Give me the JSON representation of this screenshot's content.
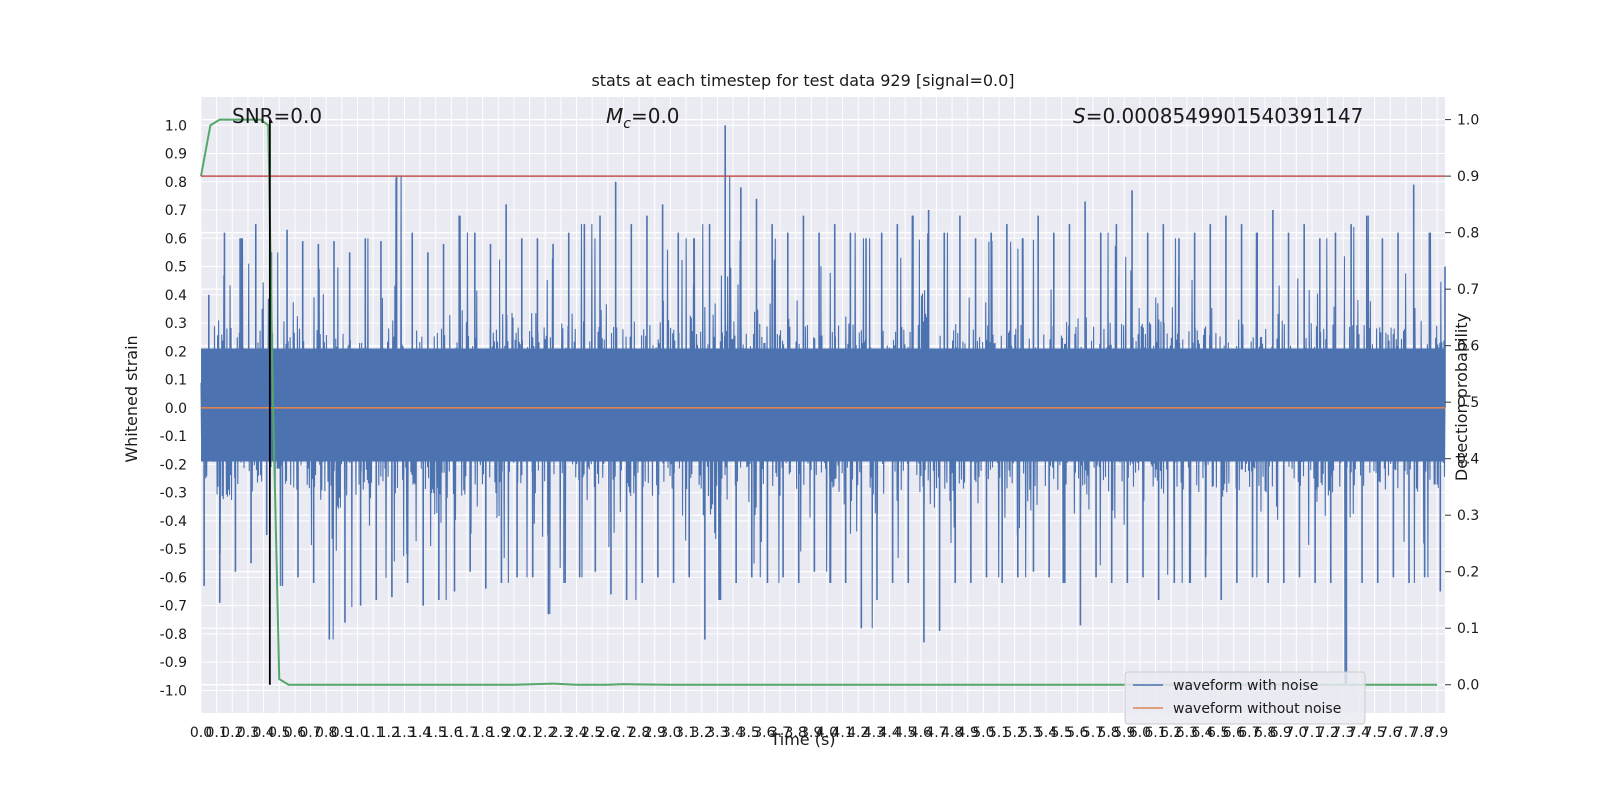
{
  "chart_data": {
    "type": "line",
    "title": "stats at each timestep for test data 929 [signal=0.0]",
    "xlabel": "Time (s)",
    "ylabel": "Whitened strain",
    "y2label": "Detection probability",
    "xlim": [
      0.0,
      7.95
    ],
    "ylim": [
      -1.08,
      1.1
    ],
    "y2lim": [
      -0.05,
      1.04
    ],
    "x_ticks": [
      "0.0",
      "0.1",
      "0.2",
      "0.3",
      "0.4",
      "0.5",
      "0.6",
      "0.7",
      "0.8",
      "0.9",
      "1.0",
      "1.1",
      "1.2",
      "1.3",
      "1.4",
      "1.5",
      "1.6",
      "1.7",
      "1.8",
      "1.9",
      "2.0",
      "2.1",
      "2.2",
      "2.3",
      "2.4",
      "2.5",
      "2.6",
      "2.7",
      "2.8",
      "2.9",
      "3.0",
      "3.1",
      "3.2",
      "3.3",
      "3.4",
      "3.5",
      "3.6",
      "3.7",
      "3.8",
      "3.9",
      "4.0",
      "4.1",
      "4.2",
      "4.3",
      "4.4",
      "4.5",
      "4.6",
      "4.7",
      "4.8",
      "4.9",
      "5.0",
      "5.1",
      "5.2",
      "5.3",
      "5.4",
      "5.5",
      "5.6",
      "5.7",
      "5.8",
      "5.9",
      "6.0",
      "6.1",
      "6.2",
      "6.3",
      "6.4",
      "6.5",
      "6.6",
      "6.7",
      "6.8",
      "6.9",
      "7.0",
      "7.1",
      "7.2",
      "7.3",
      "7.4",
      "7.5",
      "7.6",
      "7.7",
      "7.8",
      "7.9"
    ],
    "y_ticks": [
      "1.0",
      "0.9",
      "0.8",
      "0.7",
      "0.6",
      "0.5",
      "0.4",
      "0.3",
      "0.2",
      "0.1",
      "0.0",
      "-0.1",
      "-0.2",
      "-0.3",
      "-0.4",
      "-0.5",
      "-0.6",
      "-0.7",
      "-0.8",
      "-0.9",
      "-1.0"
    ],
    "y2_ticks": [
      "1.0",
      "0.9",
      "0.8",
      "0.7",
      "0.6",
      "0.5",
      "0.4",
      "0.3",
      "0.2",
      "0.1",
      "0.0"
    ],
    "annotations": {
      "snr": "SNR=0.0",
      "mc_symbol": "M",
      "mc_sub": "c",
      "mc_value": "=0.0",
      "s_symbol": "S",
      "s_value": "=0.0008549901540391147"
    },
    "threshold": 0.9,
    "marker_time": 0.44,
    "series": [
      {
        "name": "waveform with noise",
        "axis": "left",
        "color": "#4c72b0",
        "envelope_peaks": [
          [
            0.0,
            0.4,
            -0.63
          ],
          [
            0.1,
            0.62,
            -0.69
          ],
          [
            0.2,
            0.6,
            -0.58
          ],
          [
            0.3,
            0.65,
            -0.55
          ],
          [
            0.4,
            0.55,
            -0.45
          ],
          [
            0.5,
            0.63,
            -0.63
          ],
          [
            0.6,
            0.59,
            -0.6
          ],
          [
            0.7,
            0.58,
            -0.62
          ],
          [
            0.8,
            0.59,
            -0.82
          ],
          [
            0.9,
            0.55,
            -0.76
          ],
          [
            1.0,
            0.6,
            -0.7
          ],
          [
            1.1,
            0.59,
            -0.68
          ],
          [
            1.2,
            0.82,
            -0.67
          ],
          [
            1.3,
            0.62,
            -0.62
          ],
          [
            1.4,
            0.55,
            -0.7
          ],
          [
            1.5,
            0.58,
            -0.68
          ],
          [
            1.6,
            0.68,
            -0.65
          ],
          [
            1.7,
            0.62,
            -0.58
          ],
          [
            1.8,
            0.58,
            -0.64
          ],
          [
            1.9,
            0.72,
            -0.62
          ],
          [
            2.0,
            0.6,
            -0.6
          ],
          [
            2.1,
            0.6,
            -0.6
          ],
          [
            2.2,
            0.58,
            -0.73
          ],
          [
            2.3,
            0.62,
            -0.62
          ],
          [
            2.4,
            0.65,
            -0.6
          ],
          [
            2.5,
            0.68,
            -0.58
          ],
          [
            2.6,
            0.8,
            -0.66
          ],
          [
            2.7,
            0.65,
            -0.68
          ],
          [
            2.8,
            0.68,
            -0.62
          ],
          [
            2.9,
            0.72,
            -0.6
          ],
          [
            3.0,
            0.62,
            -0.62
          ],
          [
            3.1,
            0.6,
            -0.6
          ],
          [
            3.2,
            0.65,
            -0.82
          ],
          [
            3.3,
            1.0,
            -0.68
          ],
          [
            3.4,
            0.78,
            -0.62
          ],
          [
            3.5,
            0.74,
            -0.6
          ],
          [
            3.6,
            0.65,
            -0.62
          ],
          [
            3.7,
            0.62,
            -0.6
          ],
          [
            3.8,
            0.68,
            -0.62
          ],
          [
            3.9,
            0.62,
            -0.58
          ],
          [
            4.0,
            0.65,
            -0.62
          ],
          [
            4.1,
            0.62,
            -0.62
          ],
          [
            4.2,
            0.6,
            -0.78
          ],
          [
            4.3,
            0.62,
            -0.68
          ],
          [
            4.4,
            0.65,
            -0.62
          ],
          [
            4.5,
            0.68,
            -0.62
          ],
          [
            4.6,
            0.7,
            -0.83
          ],
          [
            4.7,
            0.62,
            -0.79
          ],
          [
            4.8,
            0.68,
            -0.62
          ],
          [
            4.9,
            0.6,
            -0.62
          ],
          [
            5.0,
            0.62,
            -0.6
          ],
          [
            5.1,
            0.65,
            -0.62
          ],
          [
            5.2,
            0.6,
            -0.6
          ],
          [
            5.3,
            0.68,
            -0.58
          ],
          [
            5.4,
            0.62,
            -0.6
          ],
          [
            5.5,
            0.65,
            -0.62
          ],
          [
            5.6,
            0.73,
            -0.77
          ],
          [
            5.7,
            0.62,
            -0.6
          ],
          [
            5.8,
            0.65,
            -0.62
          ],
          [
            5.9,
            0.77,
            -0.62
          ],
          [
            6.0,
            0.62,
            -0.6
          ],
          [
            6.1,
            0.65,
            -0.68
          ],
          [
            6.2,
            0.6,
            -0.62
          ],
          [
            6.3,
            0.62,
            -0.62
          ],
          [
            6.4,
            0.65,
            -0.6
          ],
          [
            6.5,
            0.68,
            -0.68
          ],
          [
            6.6,
            0.65,
            -0.62
          ],
          [
            6.7,
            0.62,
            -0.6
          ],
          [
            6.8,
            0.7,
            -0.62
          ],
          [
            6.9,
            0.62,
            -0.62
          ],
          [
            7.0,
            0.65,
            -0.6
          ],
          [
            7.1,
            0.6,
            -0.62
          ],
          [
            7.2,
            0.62,
            -0.62
          ],
          [
            7.3,
            0.65,
            -0.98
          ],
          [
            7.4,
            0.68,
            -0.62
          ],
          [
            7.5,
            0.6,
            -0.62
          ],
          [
            7.6,
            0.62,
            -0.6
          ],
          [
            7.7,
            0.79,
            -0.62
          ],
          [
            7.8,
            0.62,
            -0.6
          ],
          [
            7.9,
            0.5,
            -0.65
          ]
        ]
      },
      {
        "name": "waveform without noise",
        "axis": "left",
        "color": "#dd8452",
        "constant": 0.0
      },
      {
        "name": "Detection probability",
        "axis": "right",
        "color": "#55a868",
        "x": [
          0.0,
          0.06,
          0.12,
          0.2,
          0.3,
          0.38,
          0.43,
          0.46,
          0.5,
          0.56,
          0.6,
          1.0,
          2.0,
          2.25,
          2.4,
          2.6,
          2.7,
          3.0,
          4.0,
          5.0,
          6.0,
          7.0,
          7.9
        ],
        "values": [
          0.9,
          0.99,
          1.0,
          1.0,
          1.0,
          1.0,
          0.99,
          0.5,
          0.01,
          0.0,
          0.0,
          0.0,
          0.0,
          0.002,
          0.0,
          0.0,
          0.001,
          0.0,
          0.0,
          0.0,
          0.0,
          0.0,
          0.0
        ]
      }
    ],
    "colors": {
      "plot_bg": "#eaeaf2",
      "grid": "#ffffff",
      "threshold": "#c44e52",
      "marker": "#000000"
    },
    "legend": {
      "position": "lower-right",
      "entries": [
        {
          "label": "waveform with noise",
          "color": "#4c72b0"
        },
        {
          "label": "waveform without noise",
          "color": "#dd8452"
        }
      ]
    },
    "grid": true
  }
}
